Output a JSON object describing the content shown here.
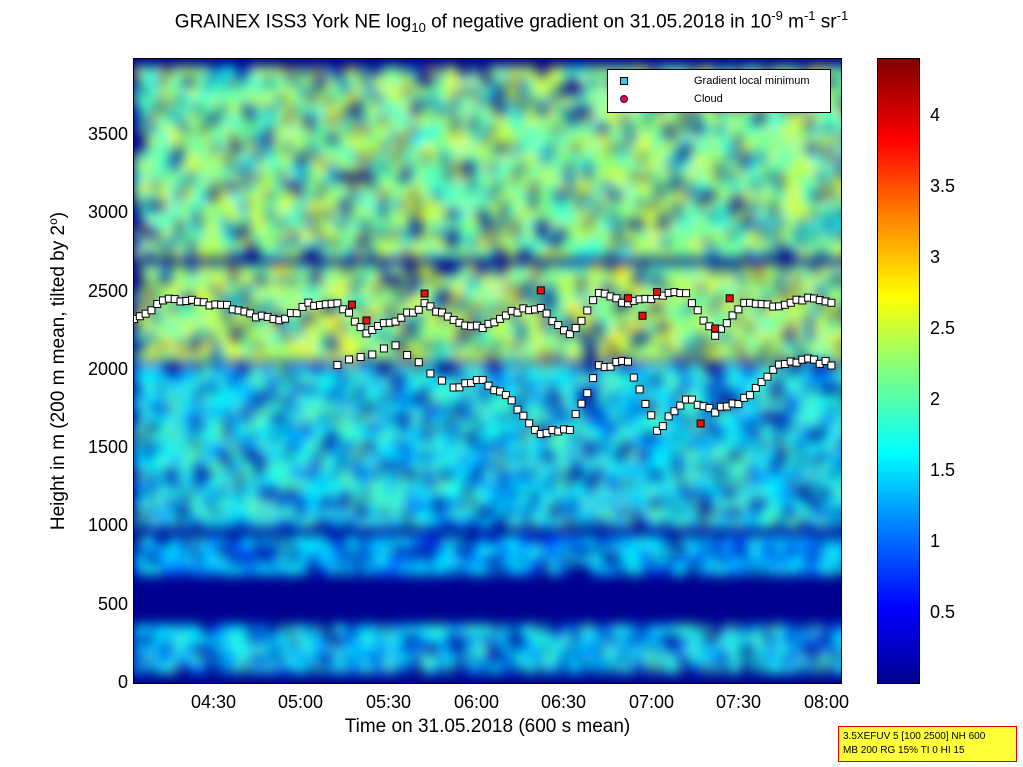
{
  "title": {
    "prefix": "GRAINEX ISS3 York NE log",
    "sub": "10",
    "middle": " of negative gradient on 31.05.2018 in 10",
    "exp1": "-9",
    "unit1": " m",
    "exp2": "-1",
    "unit2": " sr",
    "exp3": "-1"
  },
  "legend": {
    "items": [
      {
        "label": "Gradient local minimum",
        "icon": "cyan-square-marker"
      },
      {
        "label": "Cloud",
        "icon": "red-circle-marker"
      }
    ]
  },
  "axes": {
    "ylabel_main": "Height in m (200 m mean, tilted by 2",
    "ylabel_deg": "o",
    "ylabel_end": ")",
    "xlabel": "Time on 31.05.2018 (600 s mean)",
    "yticks": [
      "0",
      "500",
      "1000",
      "1500",
      "2000",
      "2500",
      "3000",
      "3500"
    ],
    "xticks": [
      "04:30",
      "05:00",
      "05:30",
      "06:00",
      "06:30",
      "07:00",
      "07:30",
      "08:00"
    ],
    "cticks": [
      "0.5",
      "1",
      "1.5",
      "2",
      "2.5",
      "3",
      "3.5",
      "4"
    ]
  },
  "info_box": {
    "line1": "3.5XEFUV 5 [100 2500] NH 600",
    "line2": "MB 200 RG 15% TI 0 HI 15"
  },
  "colors": {
    "background_field": "#00008f",
    "low_band": "#40b0ff",
    "mid_band": "#00d8ff",
    "high_band": "#a0ff60",
    "top_band": "#ffff40",
    "marker_min": "#ffffff",
    "marker_cloud": "#e81010"
  },
  "chart_data": {
    "type": "heatmap",
    "xlim_minutes_after_0400": [
      0,
      244
    ],
    "ylim_m": [
      0,
      3950
    ],
    "clim": [
      0,
      4.4
    ],
    "colormap": "jet",
    "layers": [
      {
        "height_m": [
          80,
          380
        ],
        "value": 1.5
      },
      {
        "height_m": [
          700,
          900
        ],
        "value": 1.3
      },
      {
        "height_m": [
          1000,
          2000
        ],
        "value": 1.6
      },
      {
        "height_m": [
          2050,
          2600
        ],
        "value": 2.3
      },
      {
        "height_m": [
          2700,
          3900
        ],
        "value": 2.2
      }
    ],
    "gradient_local_minimum_series": [
      {
        "time": "04:00",
        "height": 2300
      },
      {
        "time": "04:10",
        "height": 2430
      },
      {
        "time": "04:20",
        "height": 2420
      },
      {
        "time": "04:30",
        "height": 2400
      },
      {
        "time": "04:40",
        "height": 2340
      },
      {
        "time": "04:50",
        "height": 2290
      },
      {
        "time": "05:00",
        "height": 2400
      },
      {
        "time": "05:10",
        "height": 2420
      },
      {
        "time": "05:20",
        "height": 2230
      },
      {
        "time": "05:30",
        "height": 2300
      },
      {
        "time": "05:40",
        "height": 2400
      },
      {
        "time": "05:50",
        "height": 2300
      },
      {
        "time": "06:00",
        "height": 2250
      },
      {
        "time": "06:10",
        "height": 2350
      },
      {
        "time": "06:20",
        "height": 2380
      },
      {
        "time": "06:30",
        "height": 2200
      },
      {
        "time": "06:40",
        "height": 2480
      },
      {
        "time": "06:50",
        "height": 2400
      },
      {
        "time": "07:00",
        "height": 2460
      },
      {
        "time": "07:10",
        "height": 2480
      },
      {
        "time": "07:20",
        "height": 2200
      },
      {
        "time": "07:30",
        "height": 2420
      },
      {
        "time": "07:40",
        "height": 2380
      },
      {
        "time": "07:50",
        "height": 2440
      },
      {
        "time": "08:00",
        "height": 2420
      }
    ],
    "lower_minimum_series": [
      {
        "time": "05:10",
        "height": 2030
      },
      {
        "time": "05:30",
        "height": 2130
      },
      {
        "time": "05:50",
        "height": 1880
      },
      {
        "time": "06:00",
        "height": 1930
      },
      {
        "time": "06:10",
        "height": 1790
      },
      {
        "time": "06:20",
        "height": 1580
      },
      {
        "time": "06:30",
        "height": 1620
      },
      {
        "time": "06:40",
        "height": 2010
      },
      {
        "time": "06:50",
        "height": 2040
      },
      {
        "time": "07:00",
        "height": 1600
      },
      {
        "time": "07:10",
        "height": 1810
      },
      {
        "time": "07:20",
        "height": 1730
      },
      {
        "time": "07:30",
        "height": 1800
      },
      {
        "time": "07:40",
        "height": 2000
      },
      {
        "time": "07:50",
        "height": 2050
      },
      {
        "time": "08:00",
        "height": 2030
      }
    ],
    "cloud_points": [
      {
        "time": "05:15",
        "height": 2400
      },
      {
        "time": "05:20",
        "height": 2300
      },
      {
        "time": "05:40",
        "height": 2470
      },
      {
        "time": "06:20",
        "height": 2490
      },
      {
        "time": "06:50",
        "height": 2440
      },
      {
        "time": "06:55",
        "height": 2330
      },
      {
        "time": "07:00",
        "height": 2480
      },
      {
        "time": "07:15",
        "height": 1650
      },
      {
        "time": "07:20",
        "height": 2250
      },
      {
        "time": "07:25",
        "height": 2440
      }
    ]
  }
}
